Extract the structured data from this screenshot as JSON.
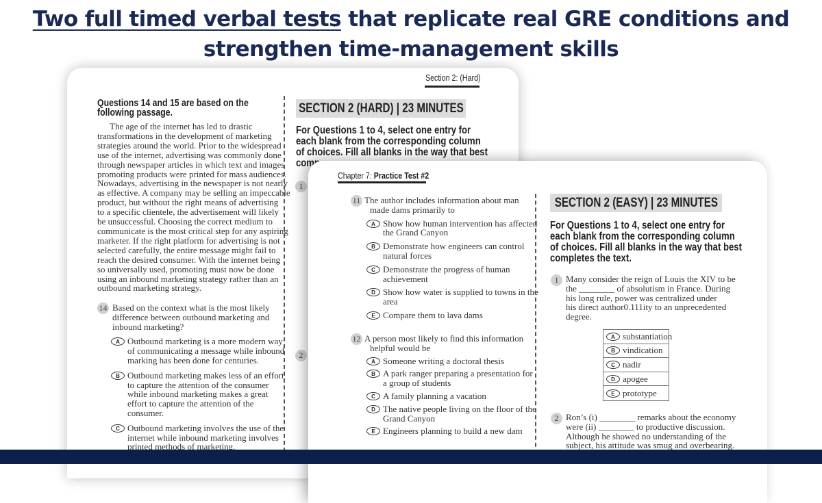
{
  "headline": {
    "underlined": "Two full timed verbal tests",
    "line1_rest": " that replicate real GRE conditions and",
    "line2": "strengthen time-management skills"
  },
  "back_page": {
    "running_head": "Section 2: (Hard)",
    "passage_heading": [
      "Questions 14 and 15 are based on the",
      "following passage."
    ],
    "passage_lines": [
      "The age of the internet has led to drastic",
      "transformations in the development of marketing",
      "strategies around the world. Prior to the widespread",
      "use of the internet, advertising was commonly done",
      "through newspaper articles in which text and images",
      "promoting products were printed for mass audiences.",
      "Nowadays, advertising in the newspaper is not nearly",
      "as effective. A company may be selling an impeccable",
      "product, but without the right means of advertising",
      "to a specific clientele, the advertisement will likely",
      "be unsuccessful. Choosing the correct medium to",
      "communicate is the most critical step for any aspiring",
      "marketer. If the right platform for advertising is not",
      "selected carefully, the entire message might fail to",
      "reach the desired consumer. With the internet being",
      "so universally used, promoting must now be done",
      "using an inbound marketing strategy rather than an",
      "outbound marketing strategy."
    ],
    "question14": {
      "number": "14",
      "lines": [
        "Based on the context what is the most likely",
        "difference between outbound marketing and",
        "inbound marketing?"
      ],
      "options": [
        {
          "letter": "A",
          "lines": [
            "Outbound marketing is a more modern way",
            "of communicating a message while inbound",
            "marking has been done for centuries."
          ]
        },
        {
          "letter": "B",
          "lines": [
            "Outbound marketing makes less of an effort",
            "to capture the attention of the consumer",
            "while inbound marketing makes a great",
            "effort to capture the attention of the",
            "consumer."
          ]
        },
        {
          "letter": "C",
          "lines": [
            "Outbound marketing involves the use of the",
            "internet while inbound marketing involves",
            "printed methods of marketing."
          ]
        }
      ]
    },
    "section_title": "SECTION 2 (HARD) | 23 MINUTES",
    "instructions": [
      "For Questions 1 to 4, select one entry for",
      "each blank from the corresponding column",
      "of choices. Fill all blanks in the way that best",
      "comp"
    ],
    "q1_number": "1",
    "q2_number": "2"
  },
  "front_page": {
    "running_head_prefix": "Chapter 7: ",
    "running_head_bold": "Practice Test #2",
    "question11": {
      "number": "11",
      "lines": [
        "The author includes information about man",
        "made dams primarily to"
      ],
      "options": [
        {
          "letter": "A",
          "lines": [
            "Show how human intervention has affected",
            "the Grand Canyon"
          ]
        },
        {
          "letter": "B",
          "lines": [
            "Demonstrate how engineers can control",
            "natural forces"
          ]
        },
        {
          "letter": "C",
          "lines": [
            "Demonstrate the progress of human",
            "achievement"
          ]
        },
        {
          "letter": "D",
          "lines": [
            "Show how water is supplied to towns in the",
            "area"
          ]
        },
        {
          "letter": "E",
          "lines": [
            "Compare them to lava dams"
          ]
        }
      ]
    },
    "question12": {
      "number": "12",
      "lines": [
        "A person most likely to find this information",
        "helpful would be"
      ],
      "options": [
        {
          "letter": "A",
          "lines": [
            "Someone writing a doctoral thesis"
          ]
        },
        {
          "letter": "B",
          "lines": [
            "A park ranger preparing a presentation for",
            "a group of students"
          ]
        },
        {
          "letter": "C",
          "lines": [
            "A family planning a vacation"
          ]
        },
        {
          "letter": "D",
          "lines": [
            "The native people living on the floor of the",
            "Grand Canyon"
          ]
        },
        {
          "letter": "E",
          "lines": [
            "Engineers planning to build a new dam"
          ]
        }
      ]
    },
    "section_title": "SECTION 2 (EASY) | 23 MINUTES",
    "instructions": [
      "For Questions 1 to 4, select one entry for",
      "each blank from the corresponding column",
      "of choices. Fill all blanks in the way that best",
      "completes the text."
    ],
    "question1": {
      "number": "1",
      "lines": [
        "Many consider the reign of Louis the XIV to be",
        "the ________ of absolutism in France. During",
        "his long rule, power was centralized under",
        "his direct author0.111ity to an unprecedented",
        "degree."
      ],
      "choices": [
        {
          "letter": "A",
          "text": "substantiation"
        },
        {
          "letter": "B",
          "text": "vindication"
        },
        {
          "letter": "C",
          "text": "nadir"
        },
        {
          "letter": "D",
          "text": "apogee"
        },
        {
          "letter": "E",
          "text": "prototype"
        }
      ]
    },
    "question2": {
      "number": "2",
      "lines": [
        "Ron’s (i) ________ remarks about the economy",
        "were (ii) ________ to productive discussion.",
        "Although he showed no understanding of the",
        "subject, his attitude was smug and overbearing."
      ]
    }
  },
  "colors": {
    "headline": "#1b2a55",
    "bottom_bar": "#0b2048",
    "section_box": "#dcdcdc"
  }
}
